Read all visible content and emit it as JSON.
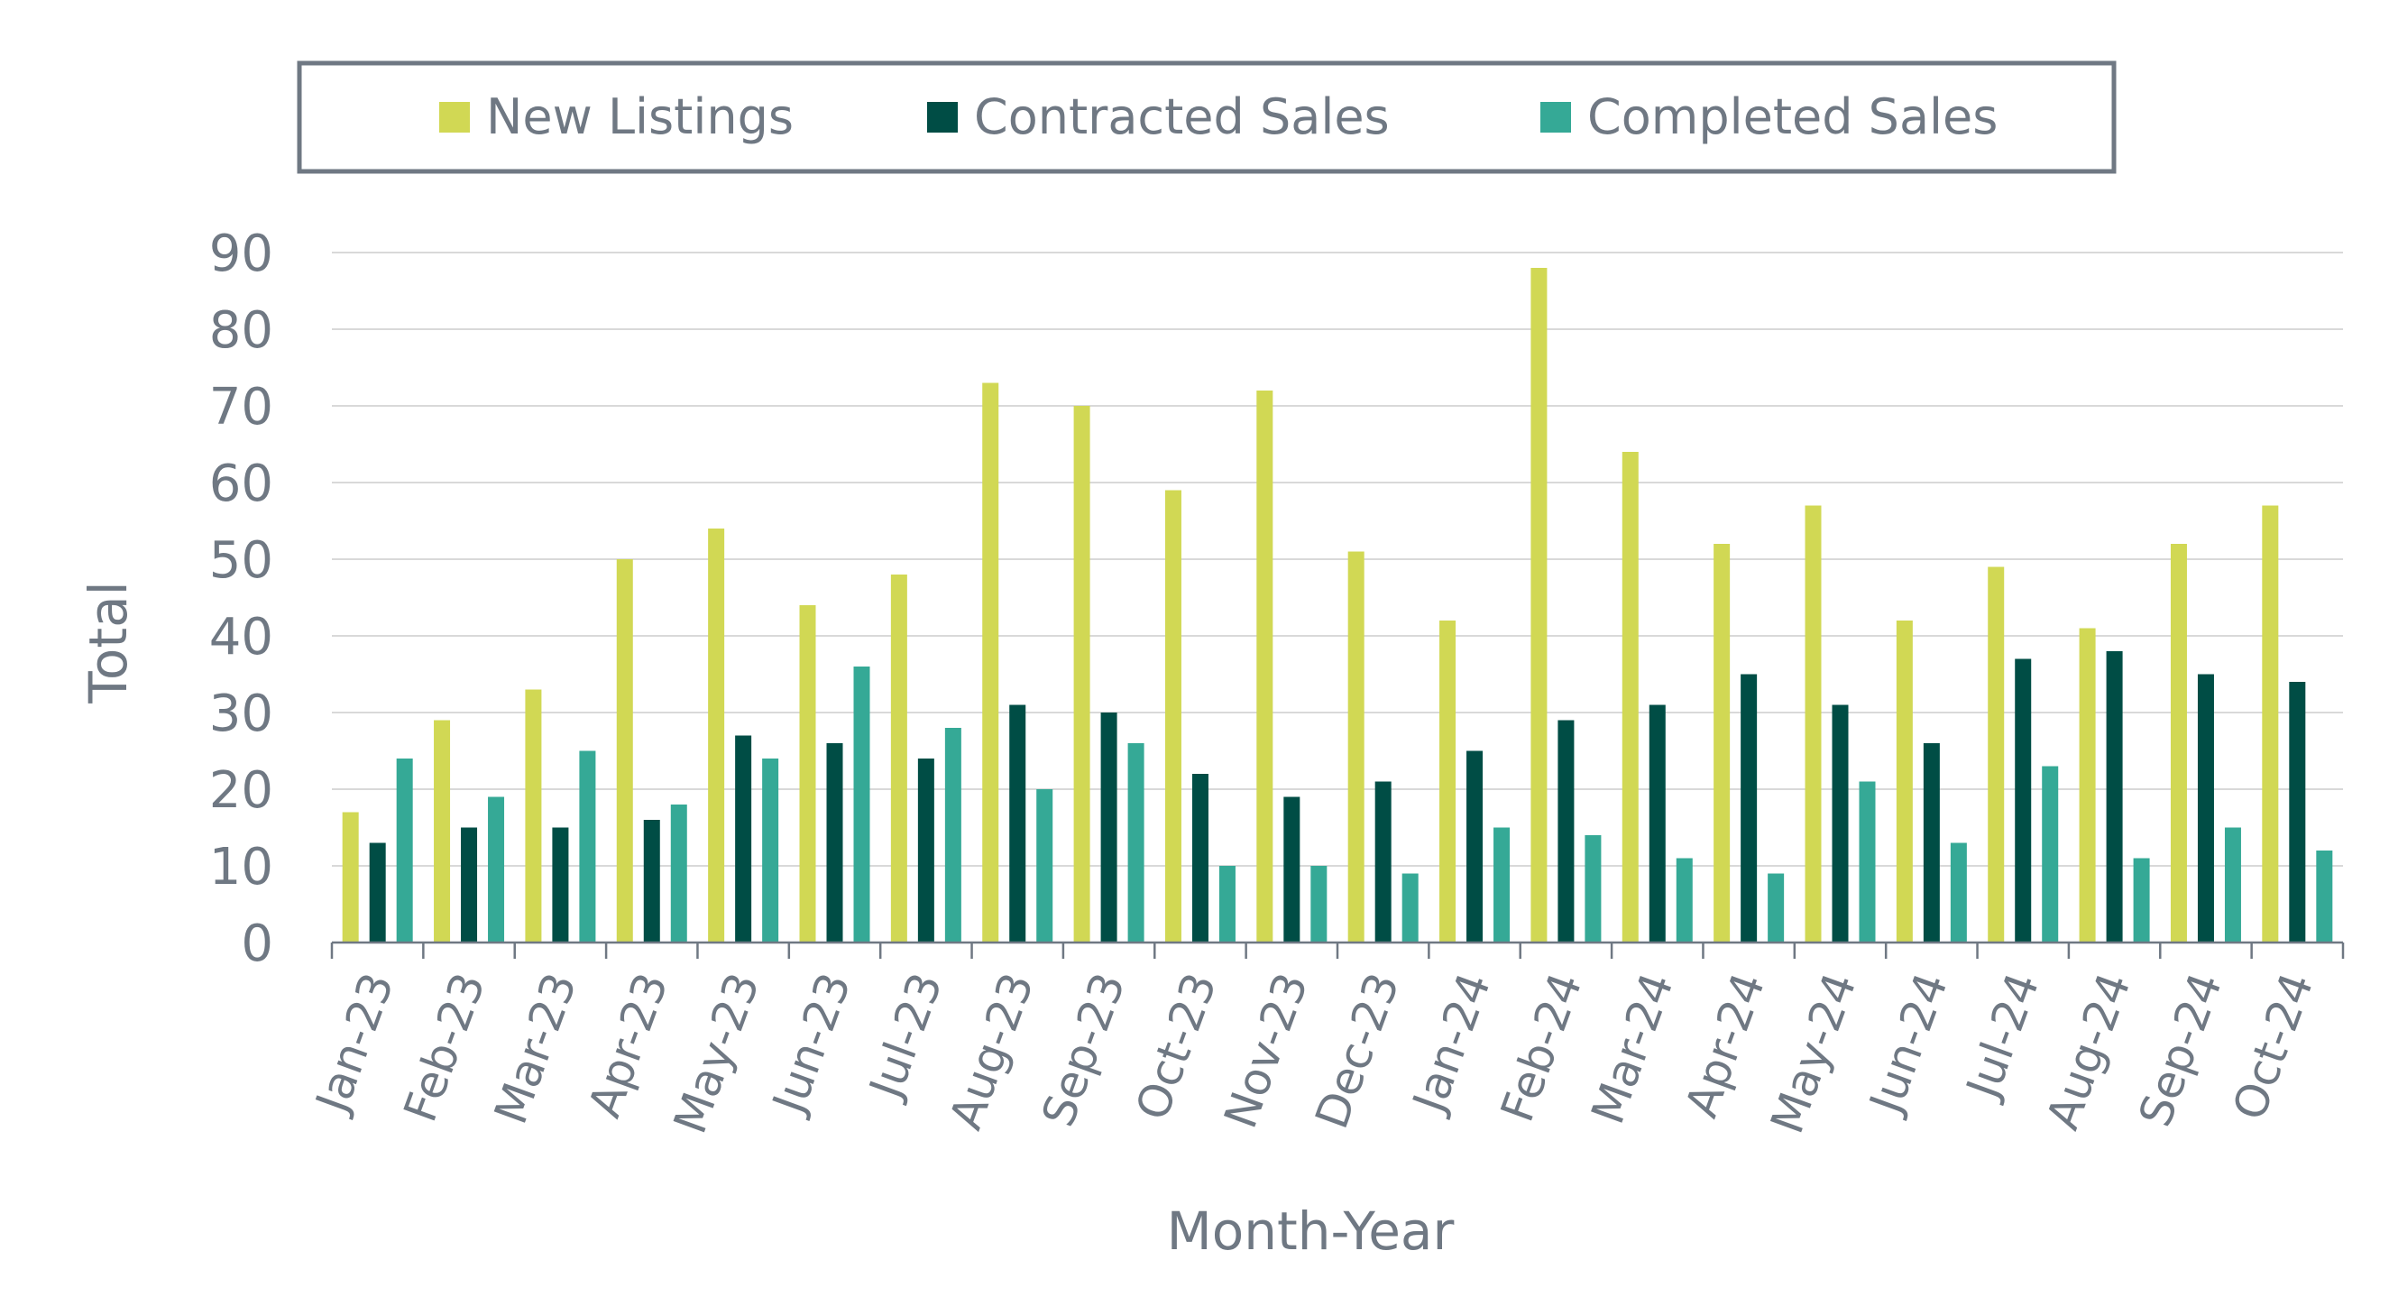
{
  "chart_data": {
    "type": "bar",
    "title": "",
    "xlabel": "Month-Year",
    "ylabel": "Total",
    "ylim": [
      0,
      90
    ],
    "yticks": [
      0,
      10,
      20,
      30,
      40,
      50,
      60,
      70,
      80,
      90
    ],
    "grid": true,
    "legend_position": "top",
    "categories": [
      "Jan-23",
      "Feb-23",
      "Mar-23",
      "Apr-23",
      "May-23",
      "Jun-23",
      "Jul-23",
      "Aug-23",
      "Sep-23",
      "Oct-23",
      "Nov-23",
      "Dec-23",
      "Jan-24",
      "Feb-24",
      "Mar-24",
      "Apr-24",
      "May-24",
      "Jun-24",
      "Jul-24",
      "Aug-24",
      "Sep-24",
      "Oct-24"
    ],
    "series": [
      {
        "name": "New Listings",
        "color": "#d1d854",
        "values": [
          17,
          29,
          33,
          50,
          54,
          44,
          48,
          73,
          70,
          59,
          72,
          51,
          42,
          88,
          64,
          52,
          57,
          42,
          49,
          41,
          52,
          57
        ]
      },
      {
        "name": "Contracted Sales",
        "color": "#004d45",
        "values": [
          13,
          15,
          15,
          16,
          27,
          26,
          24,
          31,
          30,
          22,
          19,
          21,
          25,
          29,
          31,
          35,
          31,
          26,
          37,
          38,
          35,
          34
        ]
      },
      {
        "name": "Completed Sales",
        "color": "#35a996",
        "values": [
          24,
          19,
          25,
          18,
          24,
          36,
          28,
          20,
          26,
          10,
          10,
          9,
          15,
          14,
          11,
          9,
          21,
          13,
          23,
          11,
          15,
          12
        ]
      }
    ]
  },
  "colors": {
    "grid": "#d9d9d9",
    "axis": "#6f7883",
    "text": "#6f7883",
    "legend_border": "#6f7883"
  }
}
